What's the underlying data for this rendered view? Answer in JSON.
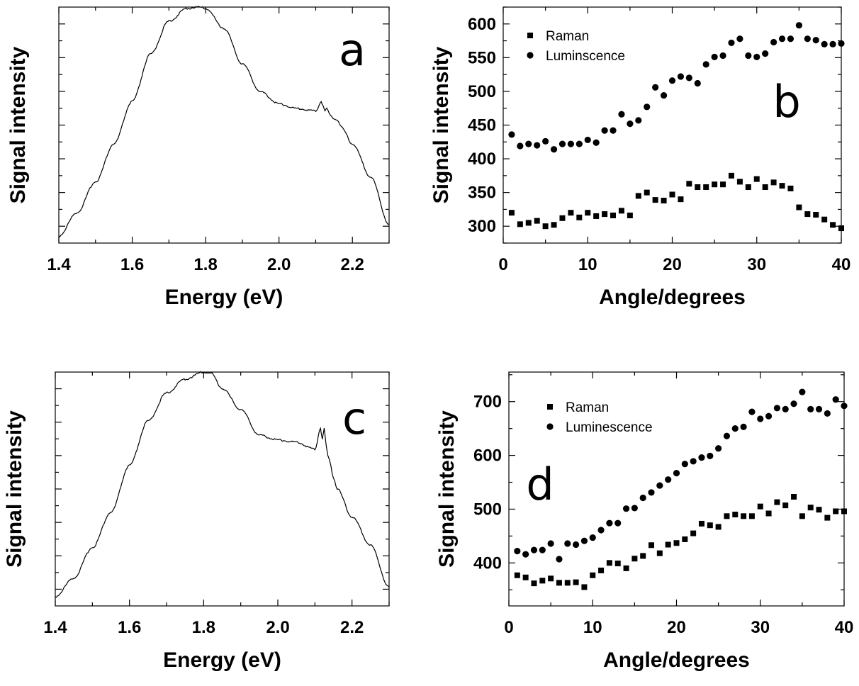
{
  "chart_data": [
    {
      "panel": "a",
      "type": "line",
      "xlabel": "Energy (eV)",
      "ylabel": "Signal intensity",
      "xlim": [
        1.4,
        2.3
      ],
      "ylim": [
        0,
        1
      ],
      "xticks": [
        "1.4",
        "1.6",
        "1.8",
        "2.0",
        "2.2"
      ],
      "yticks_labeled": false,
      "grid": false,
      "series": [
        {
          "x": [
            1.4,
            1.45,
            1.5,
            1.55,
            1.6,
            1.65,
            1.7,
            1.75,
            1.78,
            1.8,
            1.85,
            1.9,
            1.95,
            2.0,
            2.05,
            2.1,
            2.115,
            2.12,
            2.125,
            2.13,
            2.14,
            2.15,
            2.16,
            2.17,
            2.2,
            2.25,
            2.3
          ],
          "y": [
            0.03,
            0.13,
            0.26,
            0.42,
            0.6,
            0.8,
            0.94,
            0.995,
            1.0,
            0.995,
            0.91,
            0.76,
            0.64,
            0.59,
            0.57,
            0.56,
            0.6,
            0.58,
            0.56,
            0.57,
            0.54,
            0.53,
            0.52,
            0.49,
            0.42,
            0.28,
            0.08
          ]
        }
      ]
    },
    {
      "panel": "b",
      "type": "scatter",
      "xlabel": "Angle/degrees",
      "ylabel": "Signal intensity",
      "xlim": [
        0,
        40
      ],
      "ylim": [
        275,
        625
      ],
      "xticks": [
        "0",
        "10",
        "20",
        "30",
        "40"
      ],
      "yticks": [
        "300",
        "350",
        "400",
        "450",
        "500",
        "550",
        "600"
      ],
      "legend": "top-left",
      "grid": false,
      "series": [
        {
          "name": "Raman",
          "marker": "square",
          "x": [
            1,
            2,
            3,
            4,
            5,
            6,
            7,
            8,
            9,
            10,
            11,
            12,
            13,
            14,
            15,
            16,
            17,
            18,
            19,
            20,
            21,
            22,
            23,
            24,
            25,
            26,
            27,
            28,
            29,
            30,
            31,
            32,
            33,
            34,
            35,
            36,
            37,
            38,
            39,
            40
          ],
          "y": [
            320,
            303,
            305,
            308,
            300,
            302,
            312,
            320,
            313,
            320,
            315,
            318,
            316,
            323,
            316,
            345,
            350,
            339,
            338,
            347,
            340,
            363,
            358,
            358,
            362,
            362,
            375,
            366,
            358,
            370,
            358,
            365,
            360,
            356,
            328,
            318,
            317,
            310,
            302,
            297
          ]
        },
        {
          "name": "Luminscence",
          "marker": "circle",
          "x": [
            1,
            2,
            3,
            4,
            5,
            6,
            7,
            8,
            9,
            10,
            11,
            12,
            13,
            14,
            15,
            16,
            17,
            18,
            19,
            20,
            21,
            22,
            23,
            24,
            25,
            26,
            27,
            28,
            29,
            30,
            31,
            32,
            33,
            34,
            35,
            36,
            37,
            38,
            39,
            40
          ],
          "y": [
            436,
            419,
            422,
            420,
            426,
            414,
            422,
            422,
            422,
            428,
            424,
            442,
            442,
            466,
            452,
            457,
            477,
            506,
            494,
            516,
            522,
            520,
            512,
            540,
            551,
            553,
            572,
            578,
            553,
            551,
            556,
            573,
            578,
            578,
            598,
            578,
            576,
            570,
            570,
            571
          ]
        }
      ]
    },
    {
      "panel": "c",
      "type": "line",
      "xlabel": "Energy (eV)",
      "ylabel": "Signal intensity",
      "xlim": [
        1.4,
        2.3
      ],
      "ylim": [
        0,
        1
      ],
      "xticks": [
        "1.4",
        "1.6",
        "1.8",
        "2.0",
        "2.2"
      ],
      "yticks_labeled": false,
      "grid": false,
      "series": [
        {
          "x": [
            1.4,
            1.45,
            1.5,
            1.55,
            1.6,
            1.65,
            1.7,
            1.75,
            1.8,
            1.82,
            1.85,
            1.9,
            1.95,
            2.0,
            2.05,
            2.1,
            2.115,
            2.12,
            2.125,
            2.13,
            2.135,
            2.14,
            2.15,
            2.16,
            2.2,
            2.25,
            2.3
          ],
          "y": [
            0.04,
            0.12,
            0.25,
            0.4,
            0.6,
            0.79,
            0.91,
            0.97,
            1.0,
            0.995,
            0.93,
            0.84,
            0.73,
            0.71,
            0.7,
            0.67,
            0.76,
            0.71,
            0.76,
            0.69,
            0.64,
            0.62,
            0.55,
            0.5,
            0.38,
            0.26,
            0.08
          ]
        }
      ]
    },
    {
      "panel": "d",
      "type": "scatter",
      "xlabel": "Angle/degrees",
      "ylabel": "Signal intensity",
      "xlim": [
        0,
        40
      ],
      "ylim": [
        320,
        755
      ],
      "xticks": [
        "0",
        "10",
        "20",
        "30",
        "40"
      ],
      "yticks": [
        "400",
        "500",
        "600",
        "700"
      ],
      "legend": "top-left",
      "grid": false,
      "series": [
        {
          "name": "Raman",
          "marker": "square",
          "x": [
            1,
            2,
            3,
            4,
            5,
            6,
            7,
            8,
            9,
            10,
            11,
            12,
            13,
            14,
            15,
            16,
            17,
            18,
            19,
            20,
            21,
            22,
            23,
            24,
            25,
            26,
            27,
            28,
            29,
            30,
            31,
            32,
            33,
            34,
            35,
            36,
            37,
            38,
            39,
            40
          ],
          "y": [
            377,
            373,
            362,
            367,
            371,
            363,
            363,
            364,
            355,
            377,
            386,
            400,
            399,
            390,
            408,
            413,
            433,
            418,
            434,
            437,
            444,
            455,
            473,
            470,
            467,
            487,
            490,
            487,
            487,
            505,
            492,
            513,
            507,
            523,
            487,
            503,
            499,
            484,
            496,
            496
          ]
        },
        {
          "name": "Luminescence",
          "marker": "circle",
          "x": [
            1,
            2,
            3,
            4,
            5,
            6,
            7,
            8,
            9,
            10,
            11,
            12,
            13,
            14,
            15,
            16,
            17,
            18,
            19,
            20,
            21,
            22,
            23,
            24,
            25,
            26,
            27,
            28,
            29,
            30,
            31,
            32,
            33,
            34,
            35,
            36,
            37,
            38,
            39,
            40
          ],
          "y": [
            422,
            416,
            424,
            424,
            436,
            407,
            436,
            434,
            441,
            447,
            461,
            474,
            474,
            501,
            502,
            521,
            531,
            544,
            555,
            567,
            584,
            589,
            596,
            599,
            613,
            636,
            650,
            653,
            681,
            668,
            673,
            688,
            686,
            696,
            718,
            686,
            686,
            678,
            704,
            692
          ]
        }
      ]
    }
  ]
}
